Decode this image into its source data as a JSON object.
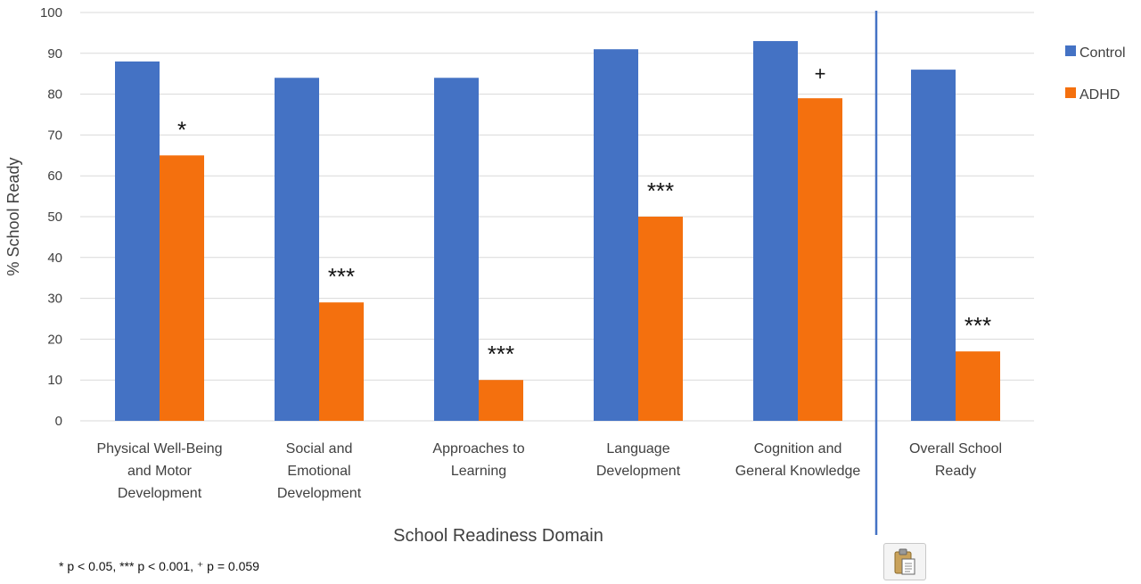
{
  "chart_data": {
    "type": "bar",
    "categories": [
      [
        "Physical Well-Being",
        "and Motor",
        "Development"
      ],
      [
        "Social and",
        "Emotional",
        "Development"
      ],
      [
        "Approaches to",
        "Learning"
      ],
      [
        "Language",
        "Development"
      ],
      [
        "Cognition and",
        "General Knowledge"
      ],
      [
        "Overall School",
        "Ready"
      ]
    ],
    "series": [
      {
        "name": "Control",
        "color": "#4472C4",
        "values": [
          88,
          84,
          84,
          91,
          93,
          86
        ]
      },
      {
        "name": "ADHD",
        "color": "#F4700E",
        "values": [
          65,
          29,
          10,
          50,
          79,
          17
        ]
      }
    ],
    "significance": [
      "*",
      "***",
      "***",
      "***",
      "+",
      "***"
    ],
    "title": "",
    "xlabel": "School Readiness Domain",
    "ylabel": "% School Ready",
    "ylim": [
      0,
      100
    ],
    "yticks": [
      "0",
      "10",
      "20",
      "30",
      "40",
      "50",
      "60",
      "70",
      "80",
      "90",
      "100"
    ],
    "grid": true,
    "legend_position": "right",
    "footnote": "* p < 0.05, *** p < 0.001, ⁺ p = 0.059"
  },
  "paste_icon": "clipboard-icon"
}
